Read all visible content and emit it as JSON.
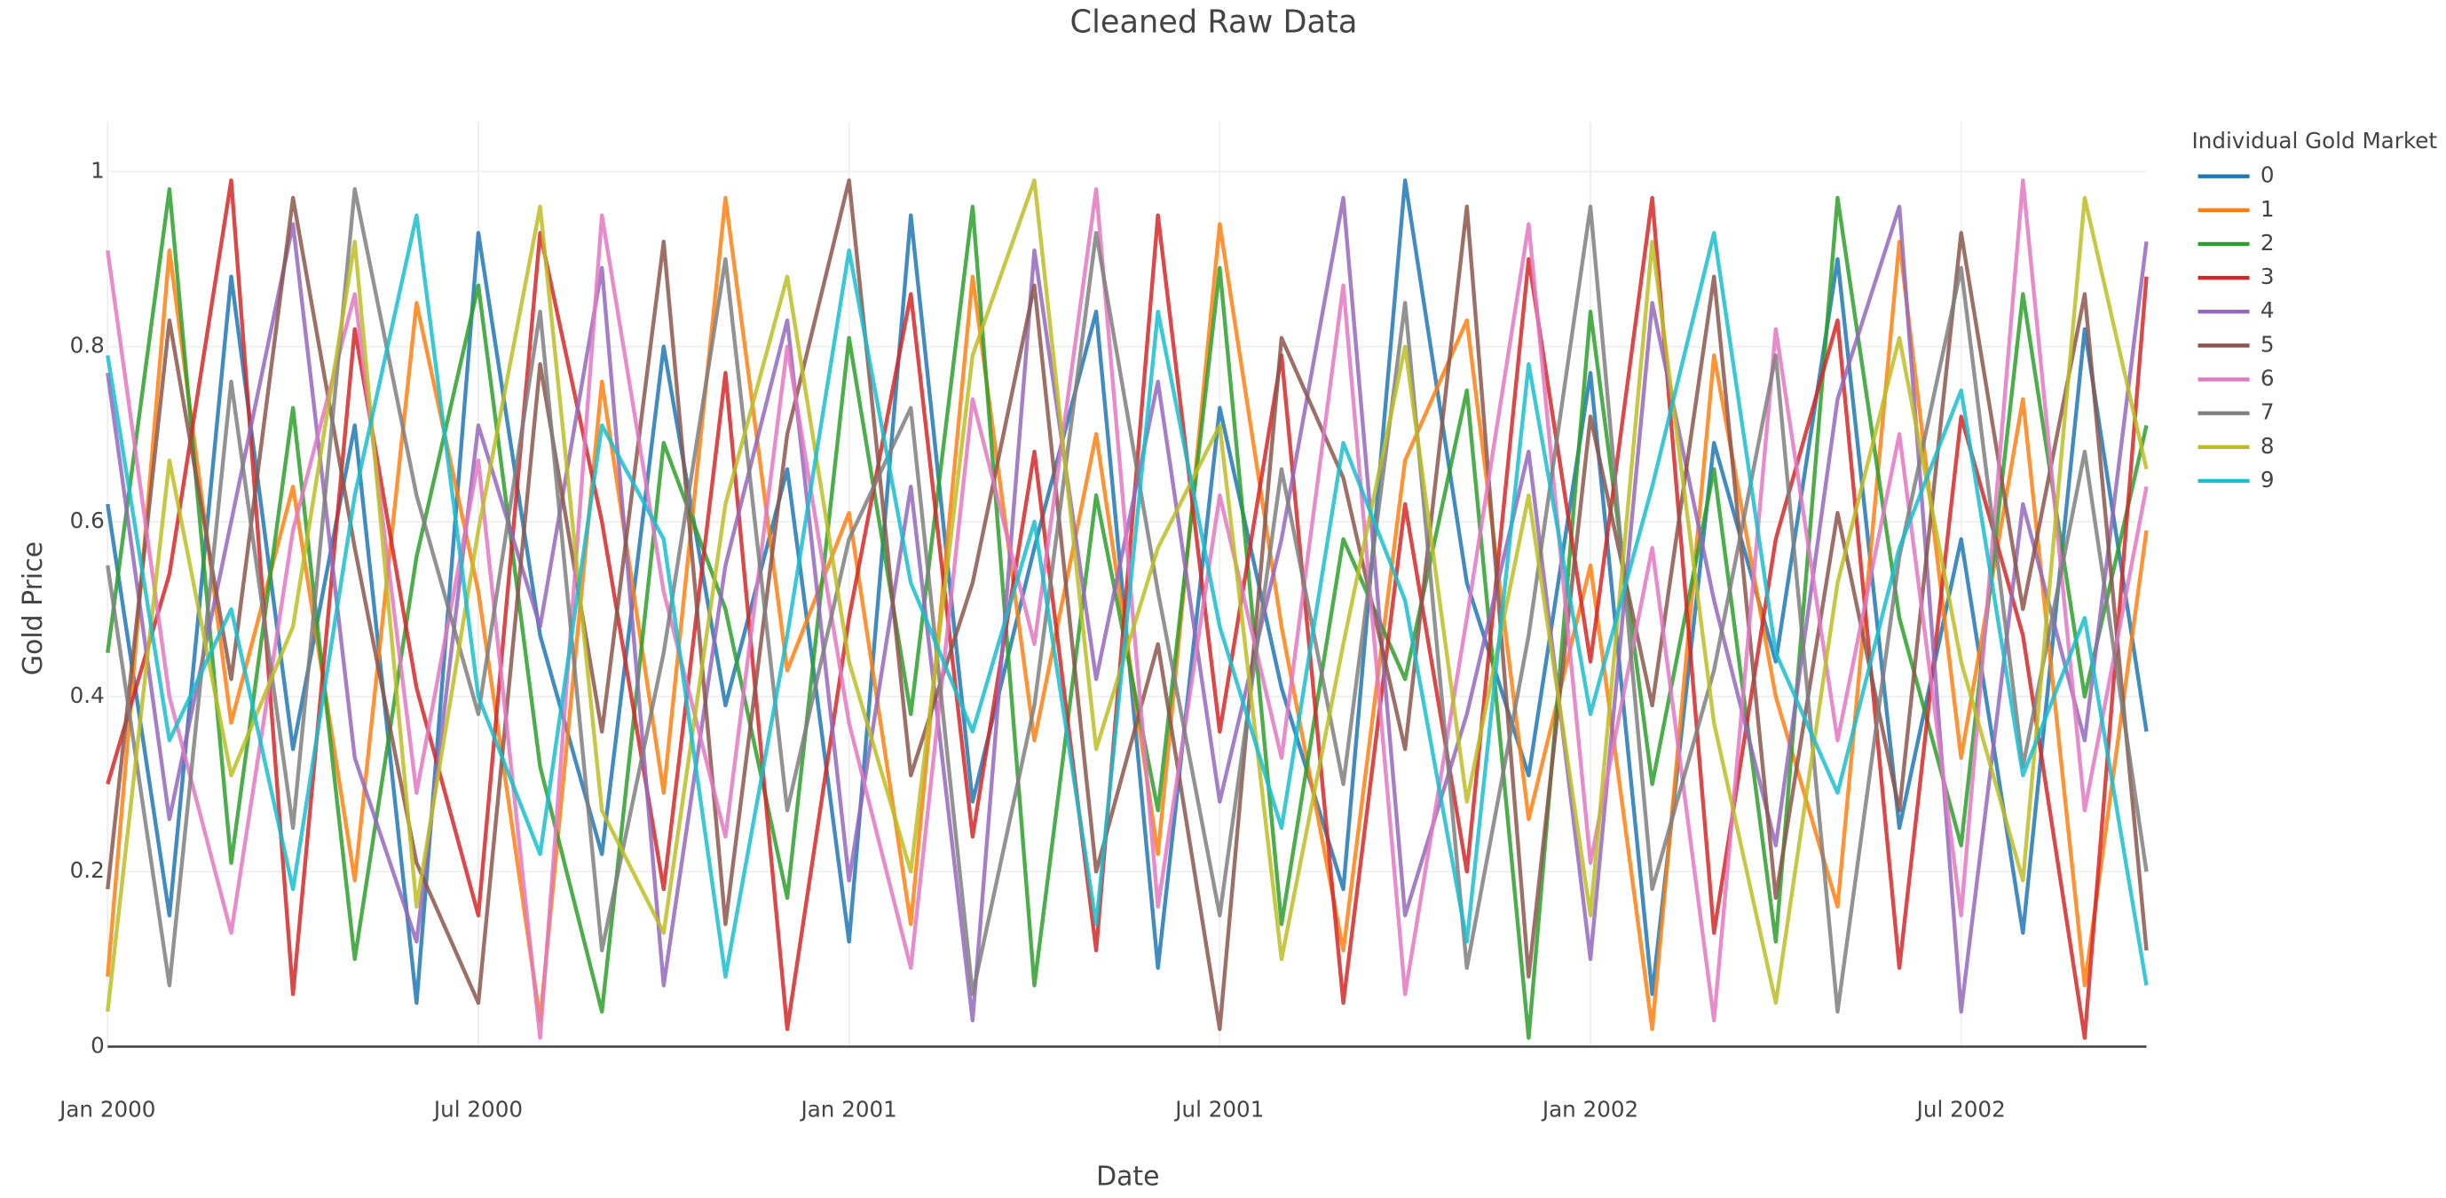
{
  "chart_data": {
    "type": "line",
    "title": "Cleaned Raw Data",
    "x_label": "Date",
    "y_label": "Gold Price",
    "legend_title": "Individual Gold Market",
    "legend_position": "right",
    "grid": true,
    "x": [
      "2000-01",
      "2000-02",
      "2000-03",
      "2000-04",
      "2000-05",
      "2000-06",
      "2000-07",
      "2000-08",
      "2000-09",
      "2000-10",
      "2000-11",
      "2000-12",
      "2001-01",
      "2001-02",
      "2001-03",
      "2001-04",
      "2001-05",
      "2001-06",
      "2001-07",
      "2001-08",
      "2001-09",
      "2001-10",
      "2001-11",
      "2001-12",
      "2002-01",
      "2002-02",
      "2002-03",
      "2002-04",
      "2002-05",
      "2002-06",
      "2002-07",
      "2002-08",
      "2002-09",
      "2002-10"
    ],
    "xlim": [
      "2000-01",
      "2002-10"
    ],
    "xticks": [
      {
        "value": "2000-01",
        "label": "Jan 2000"
      },
      {
        "value": "2000-07",
        "label": "Jul 2000"
      },
      {
        "value": "2001-01",
        "label": "Jan 2001"
      },
      {
        "value": "2001-07",
        "label": "Jul 2001"
      },
      {
        "value": "2002-01",
        "label": "Jan 2002"
      },
      {
        "value": "2002-07",
        "label": "Jul 2002"
      }
    ],
    "ylim": [
      0,
      1
    ],
    "yticks": [
      0,
      0.2,
      0.4,
      0.6,
      0.8,
      1
    ],
    "series": [
      {
        "name": "0",
        "color": "#1f77b4",
        "values": [
          0.62,
          0.15,
          0.88,
          0.34,
          0.71,
          0.05,
          0.93,
          0.47,
          0.22,
          0.8,
          0.39,
          0.66,
          0.12,
          0.95,
          0.28,
          0.57,
          0.84,
          0.09,
          0.73,
          0.41,
          0.18,
          0.99,
          0.53,
          0.31,
          0.77,
          0.06,
          0.69,
          0.44,
          0.9,
          0.25,
          0.58,
          0.13,
          0.82,
          0.36
        ]
      },
      {
        "name": "1",
        "color": "#ff7f0e",
        "values": [
          0.08,
          0.91,
          0.37,
          0.64,
          0.19,
          0.85,
          0.52,
          0.03,
          0.76,
          0.29,
          0.97,
          0.43,
          0.61,
          0.14,
          0.88,
          0.35,
          0.7,
          0.22,
          0.94,
          0.48,
          0.11,
          0.67,
          0.83,
          0.26,
          0.55,
          0.02,
          0.79,
          0.4,
          0.16,
          0.92,
          0.33,
          0.74,
          0.07,
          0.59
        ]
      },
      {
        "name": "2",
        "color": "#2ca02c",
        "values": [
          0.45,
          0.98,
          0.21,
          0.73,
          0.1,
          0.56,
          0.87,
          0.32,
          0.04,
          0.69,
          0.5,
          0.17,
          0.81,
          0.38,
          0.96,
          0.07,
          0.63,
          0.27,
          0.89,
          0.14,
          0.58,
          0.42,
          0.75,
          0.01,
          0.84,
          0.3,
          0.66,
          0.12,
          0.97,
          0.49,
          0.23,
          0.86,
          0.4,
          0.71
        ]
      },
      {
        "name": "3",
        "color": "#d62728",
        "values": [
          0.3,
          0.54,
          0.99,
          0.06,
          0.82,
          0.41,
          0.15,
          0.93,
          0.6,
          0.18,
          0.77,
          0.02,
          0.49,
          0.86,
          0.24,
          0.68,
          0.11,
          0.95,
          0.36,
          0.79,
          0.05,
          0.62,
          0.2,
          0.9,
          0.44,
          0.97,
          0.13,
          0.58,
          0.83,
          0.09,
          0.72,
          0.47,
          0.01,
          0.88
        ]
      },
      {
        "name": "4",
        "color": "#9467bd",
        "values": [
          0.77,
          0.26,
          0.6,
          0.94,
          0.33,
          0.12,
          0.71,
          0.48,
          0.89,
          0.07,
          0.55,
          0.83,
          0.19,
          0.64,
          0.03,
          0.91,
          0.42,
          0.76,
          0.28,
          0.58,
          0.97,
          0.15,
          0.38,
          0.68,
          0.1,
          0.85,
          0.51,
          0.23,
          0.74,
          0.96,
          0.04,
          0.62,
          0.35,
          0.92
        ]
      },
      {
        "name": "5",
        "color": "#8c564b",
        "values": [
          0.18,
          0.83,
          0.42,
          0.97,
          0.57,
          0.21,
          0.05,
          0.78,
          0.36,
          0.92,
          0.14,
          0.7,
          0.99,
          0.31,
          0.53,
          0.87,
          0.2,
          0.46,
          0.02,
          0.81,
          0.65,
          0.34,
          0.96,
          0.08,
          0.72,
          0.39,
          0.88,
          0.17,
          0.61,
          0.27,
          0.93,
          0.5,
          0.86,
          0.11
        ]
      },
      {
        "name": "6",
        "color": "#e377c2",
        "values": [
          0.91,
          0.4,
          0.13,
          0.59,
          0.86,
          0.29,
          0.67,
          0.01,
          0.95,
          0.52,
          0.24,
          0.8,
          0.37,
          0.09,
          0.74,
          0.46,
          0.98,
          0.16,
          0.63,
          0.33,
          0.87,
          0.06,
          0.49,
          0.94,
          0.21,
          0.57,
          0.03,
          0.82,
          0.35,
          0.7,
          0.15,
          0.99,
          0.27,
          0.64
        ]
      },
      {
        "name": "7",
        "color": "#7f7f7f",
        "values": [
          0.55,
          0.07,
          0.76,
          0.25,
          0.98,
          0.63,
          0.38,
          0.84,
          0.11,
          0.45,
          0.9,
          0.27,
          0.58,
          0.73,
          0.06,
          0.39,
          0.93,
          0.52,
          0.15,
          0.66,
          0.3,
          0.85,
          0.09,
          0.47,
          0.96,
          0.18,
          0.43,
          0.79,
          0.04,
          0.56,
          0.89,
          0.32,
          0.68,
          0.2
        ]
      },
      {
        "name": "8",
        "color": "#bcbd22",
        "values": [
          0.04,
          0.67,
          0.31,
          0.48,
          0.92,
          0.16,
          0.59,
          0.96,
          0.27,
          0.13,
          0.62,
          0.88,
          0.44,
          0.2,
          0.79,
          0.99,
          0.34,
          0.57,
          0.71,
          0.1,
          0.46,
          0.8,
          0.28,
          0.63,
          0.15,
          0.92,
          0.37,
          0.05,
          0.53,
          0.81,
          0.44,
          0.19,
          0.97,
          0.66
        ]
      },
      {
        "name": "9",
        "color": "#17becf",
        "values": [
          0.79,
          0.35,
          0.5,
          0.18,
          0.63,
          0.95,
          0.4,
          0.22,
          0.71,
          0.58,
          0.08,
          0.47,
          0.91,
          0.53,
          0.36,
          0.6,
          0.14,
          0.84,
          0.48,
          0.25,
          0.69,
          0.51,
          0.12,
          0.78,
          0.38,
          0.64,
          0.93,
          0.45,
          0.29,
          0.57,
          0.75,
          0.31,
          0.49,
          0.07
        ]
      }
    ]
  }
}
